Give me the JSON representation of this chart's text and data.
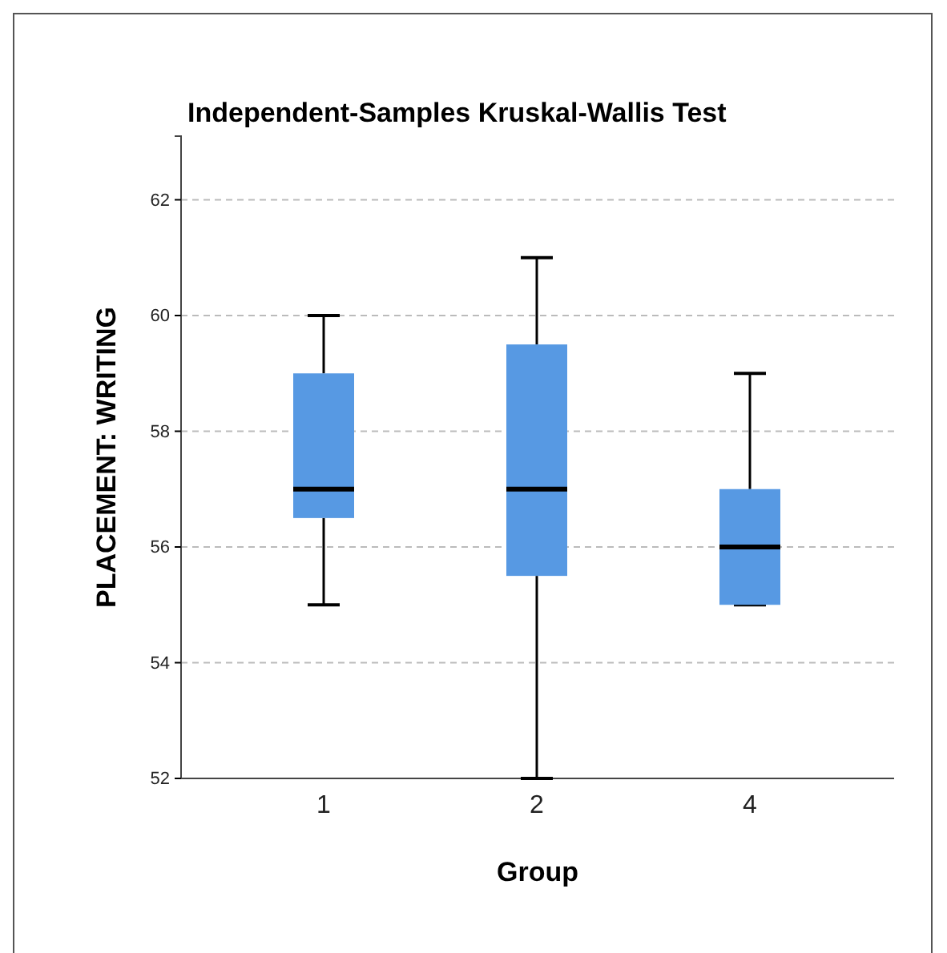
{
  "chart_data": {
    "type": "box",
    "title": "Independent-Samples Kruskal-Wallis Test",
    "xlabel": "Group",
    "ylabel": "PLACEMENT: WRITING",
    "categories": [
      "1",
      "2",
      "4"
    ],
    "color": "#5799e3",
    "boxes": [
      {
        "low": 55,
        "q1": 56.5,
        "median": 57,
        "q3": 59,
        "high": 60
      },
      {
        "low": 52,
        "q1": 55.5,
        "median": 57,
        "q3": 59.5,
        "high": 61
      },
      {
        "low": 55,
        "q1": 55,
        "median": 56,
        "q3": 57,
        "high": 59
      }
    ],
    "ylim": [
      52,
      63.1
    ],
    "yticks": [
      52,
      54,
      56,
      58,
      60,
      62
    ],
    "grid": "y"
  }
}
